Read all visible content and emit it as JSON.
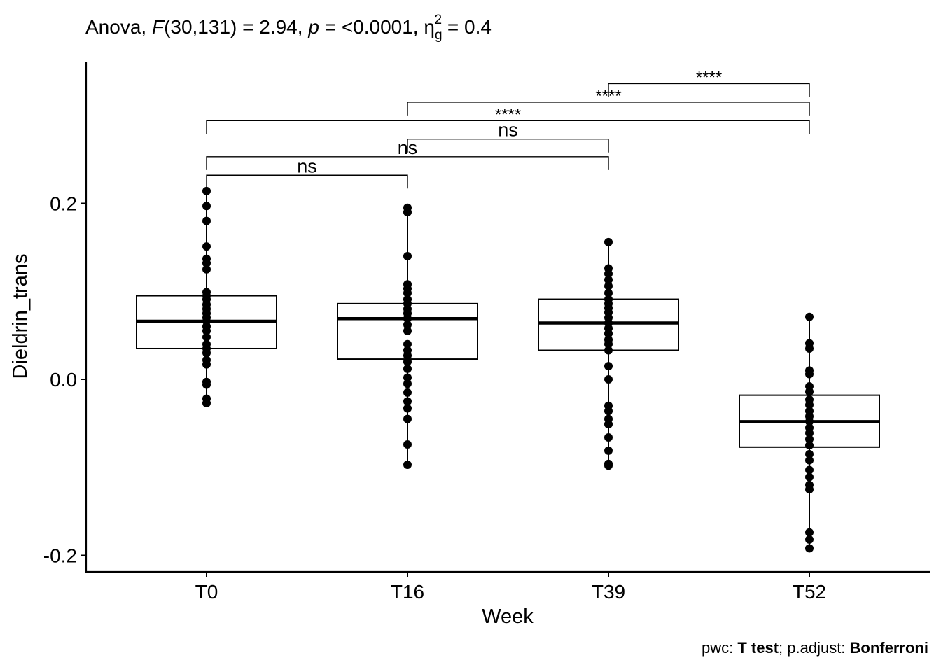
{
  "chart_data": {
    "type": "box",
    "title": {
      "prefix": "Anova, ",
      "stat_symbol": "F",
      "stat_df": "(30,131) = 2.94, ",
      "p_symbol": "p",
      "p_value": " = <0.0001, ",
      "effect_symbol": "η",
      "effect_sub": "g",
      "effect_sup": "2",
      "effect_value": " = 0.4"
    },
    "caption": {
      "pwc_label": "pwc: ",
      "pwc_method": "T test",
      "adjust_label": "; p.adjust: ",
      "adjust_method": "Bonferroni"
    },
    "xlabel": "Week",
    "ylabel": "Dieldrin_trans",
    "categories": [
      "T0",
      "T16",
      "T39",
      "T52"
    ],
    "ylim": [
      -0.22,
      0.36
    ],
    "yticks": [
      {
        "value": -0.2,
        "label": "-0.2"
      },
      {
        "value": 0.0,
        "label": "0.0"
      },
      {
        "value": 0.2,
        "label": "0.2"
      }
    ],
    "boxes": [
      {
        "category": "T0",
        "q1": 0.035,
        "median": 0.066,
        "q3": 0.095,
        "whisker_low": -0.027,
        "whisker_high": 0.214
      },
      {
        "category": "T16",
        "q1": 0.023,
        "median": 0.069,
        "q3": 0.086,
        "whisker_low": -0.097,
        "whisker_high": 0.195
      },
      {
        "category": "T39",
        "q1": 0.033,
        "median": 0.064,
        "q3": 0.091,
        "whisker_low": -0.098,
        "whisker_high": 0.156
      },
      {
        "category": "T52",
        "q1": -0.077,
        "median": -0.048,
        "q3": -0.018,
        "whisker_low": -0.192,
        "whisker_high": 0.071
      }
    ],
    "points": [
      {
        "category": "T0",
        "values": [
          0.214,
          0.197,
          0.18,
          0.151,
          0.137,
          0.132,
          0.125,
          0.099,
          0.095,
          0.091,
          0.085,
          0.08,
          0.075,
          0.07,
          0.066,
          0.06,
          0.055,
          0.048,
          0.04,
          0.035,
          0.03,
          0.022,
          0.017,
          -0.003,
          -0.006,
          -0.022,
          -0.027
        ]
      },
      {
        "category": "T16",
        "values": [
          0.195,
          0.19,
          0.14,
          0.108,
          0.103,
          0.098,
          0.091,
          0.086,
          0.08,
          0.075,
          0.069,
          0.062,
          0.055,
          0.04,
          0.033,
          0.027,
          0.02,
          0.012,
          0.002,
          -0.005,
          -0.015,
          -0.025,
          -0.033,
          -0.045,
          -0.074,
          -0.097
        ]
      },
      {
        "category": "T39",
        "values": [
          0.156,
          0.126,
          0.12,
          0.113,
          0.106,
          0.098,
          0.091,
          0.086,
          0.081,
          0.076,
          0.07,
          0.064,
          0.058,
          0.052,
          0.045,
          0.04,
          0.033,
          0.015,
          0.0,
          -0.03,
          -0.036,
          -0.045,
          -0.051,
          -0.066,
          -0.081,
          -0.096,
          -0.098
        ]
      },
      {
        "category": "T52",
        "values": [
          0.071,
          0.041,
          0.035,
          0.01,
          0.006,
          -0.008,
          -0.014,
          -0.023,
          -0.029,
          -0.036,
          -0.042,
          -0.048,
          -0.055,
          -0.061,
          -0.068,
          -0.075,
          -0.085,
          -0.092,
          -0.103,
          -0.111,
          -0.12,
          -0.125,
          -0.174,
          -0.182,
          -0.192
        ]
      }
    ],
    "comparisons": [
      {
        "group1": "T0",
        "group2": "T16",
        "label": "ns",
        "y": 0.232
      },
      {
        "group1": "T0",
        "group2": "T39",
        "label": "ns",
        "y": 0.253
      },
      {
        "group1": "T16",
        "group2": "T39",
        "label": "ns",
        "y": 0.273
      },
      {
        "group1": "T0",
        "group2": "T52",
        "label": "****",
        "y": 0.294
      },
      {
        "group1": "T16",
        "group2": "T52",
        "label": "****",
        "y": 0.315
      },
      {
        "group1": "T39",
        "group2": "T52",
        "label": "****",
        "y": 0.336
      }
    ]
  }
}
